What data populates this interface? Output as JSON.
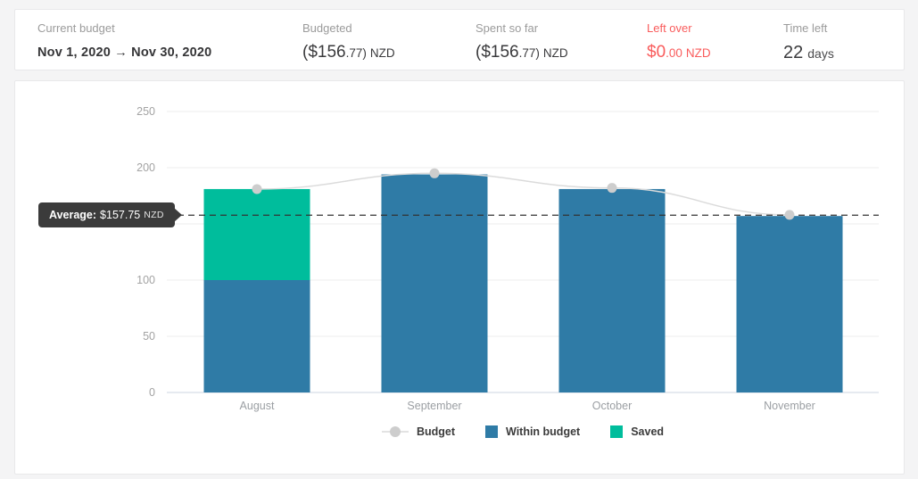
{
  "summary": {
    "current_budget": {
      "label": "Current budget",
      "value": "Nov 1, 2020 → Nov 30, 2020"
    },
    "budgeted": {
      "label": "Budgeted",
      "amount_main": "($156",
      "amount_small": ".77)",
      "currency": "NZD"
    },
    "spent_so_far": {
      "label": "Spent so far",
      "amount_main": "($156",
      "amount_small": ".77)",
      "currency": "NZD"
    },
    "left_over": {
      "label": "Left over",
      "amount_main": "$0",
      "amount_small": ".00",
      "currency": "NZD",
      "color": "#f95c5c"
    },
    "time_left": {
      "label": "Time left",
      "value": "22",
      "unit": "days"
    }
  },
  "chart_data": {
    "type": "bar",
    "stacked": true,
    "categories": [
      "August",
      "September",
      "October",
      "November"
    ],
    "series": [
      {
        "name": "Within budget",
        "type": "bar",
        "color": "#2f7ba6",
        "values": [
          100,
          194,
          181,
          157
        ]
      },
      {
        "name": "Saved",
        "type": "bar",
        "color": "#00bd9c",
        "values": [
          81,
          0,
          0,
          0
        ]
      },
      {
        "name": "Budget",
        "type": "line",
        "color": "#cdcdcd",
        "line_color": "#dbdbdb",
        "values": [
          181,
          195,
          182,
          158
        ]
      }
    ],
    "y_ticks": [
      0,
      50,
      100,
      150,
      200,
      250
    ],
    "ylim": [
      0,
      250
    ],
    "grid": true,
    "legend_position": "bottom",
    "average": {
      "value": 157.75,
      "label_bold": "Average:",
      "value_text": "$157.75",
      "currency": "NZD",
      "line_style": "dashed",
      "line_color": "#333333"
    },
    "legend": [
      {
        "label": "Budget",
        "marker": "line-dot",
        "color": "#cdcdcd"
      },
      {
        "label": "Within budget",
        "marker": "square",
        "color": "#2f7ba6"
      },
      {
        "label": "Saved",
        "marker": "square",
        "color": "#00bd9c"
      }
    ],
    "colors": {
      "grid_line": "#ededed",
      "axis_line": "#ccd5e2",
      "tick_label": "#a3a3a3",
      "month_label": "#9b9fa3"
    }
  }
}
